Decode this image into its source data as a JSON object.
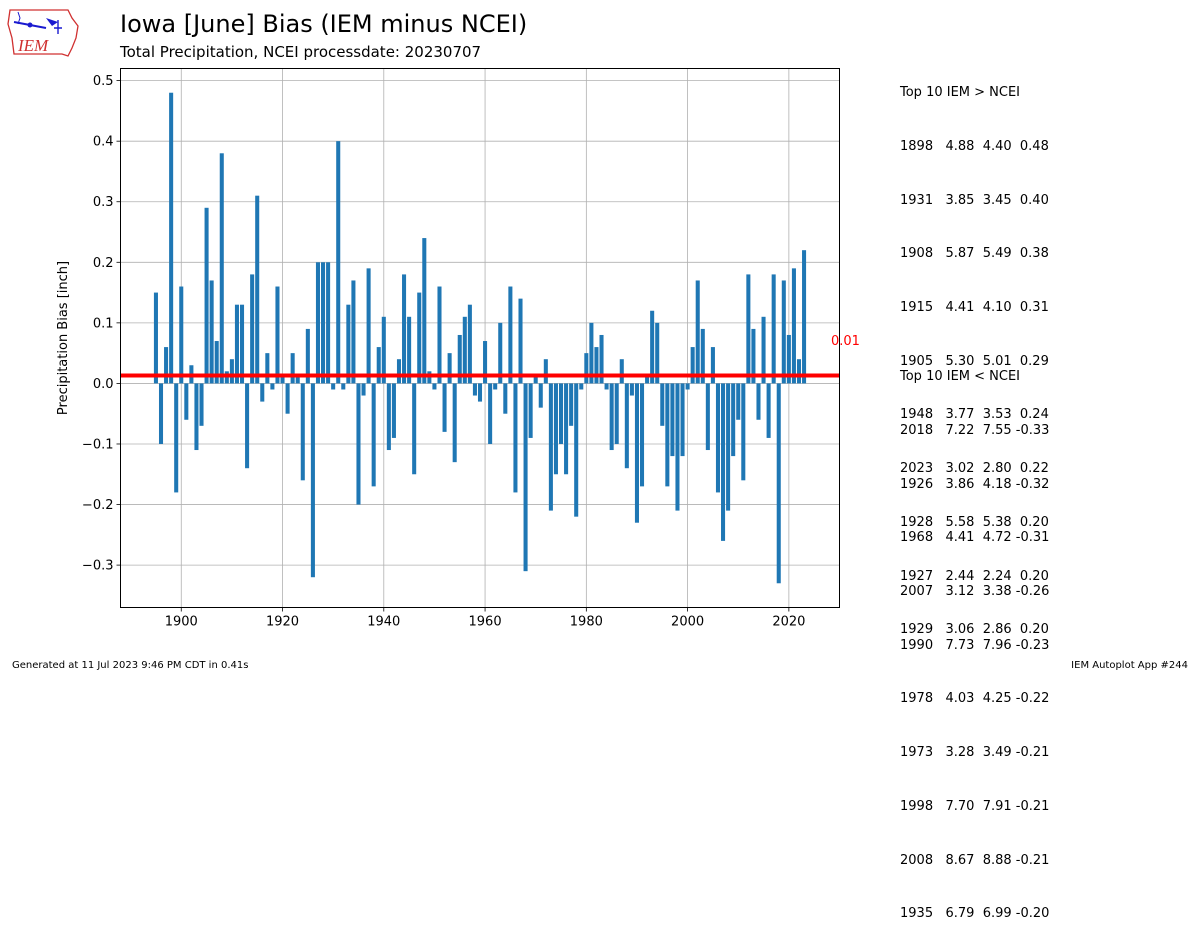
{
  "logo_text": "IEM",
  "title": "Iowa [June] Bias (IEM minus NCEI)",
  "subtitle": "Total Precipitation, NCEI processdate: 20230707",
  "footer": {
    "left": "Generated at 11 Jul 2023 9:46 PM CDT in 0.41s",
    "right": "IEM Autoplot App #244"
  },
  "top_positive": {
    "title": "Top 10 IEM > NCEI",
    "rows": [
      "1898   4.88  4.40  0.48",
      "1931   3.85  3.45  0.40",
      "1908   5.87  5.49  0.38",
      "1915   4.41  4.10  0.31",
      "1905   5.30  5.01  0.29",
      "1948   3.77  3.53  0.24",
      "2023   3.02  2.80  0.22",
      "1928   5.58  5.38  0.20",
      "1927   2.44  2.24  0.20",
      "1929   3.06  2.86  0.20"
    ]
  },
  "top_negative": {
    "title": "Top 10 IEM < NCEI",
    "rows": [
      "2018   7.22  7.55 -0.33",
      "1926   3.86  4.18 -0.32",
      "1968   4.41  4.72 -0.31",
      "2007   3.12  3.38 -0.26",
      "1990   7.73  7.96 -0.23",
      "1978   4.03  4.25 -0.22",
      "1973   3.28  3.49 -0.21",
      "1998   7.70  7.91 -0.21",
      "2008   8.67  8.88 -0.21",
      "1935   6.79  6.99 -0.20"
    ]
  },
  "chart_data": {
    "type": "bar",
    "title": "Iowa [June] Bias (IEM minus NCEI)",
    "subtitle": "Total Precipitation, NCEI processdate: 20230707",
    "xlabel": "",
    "ylabel": "Precipitation Bias [inch]",
    "xlim": [
      1888,
      2030
    ],
    "ylim": [
      -0.37,
      0.52
    ],
    "xticks": [
      1900,
      1920,
      1940,
      1960,
      1980,
      2000,
      2020
    ],
    "yticks": [
      -0.3,
      -0.2,
      -0.1,
      0.0,
      0.1,
      0.2,
      0.3,
      0.4,
      0.5
    ],
    "ytick_labels": [
      "−0.3",
      "−0.2",
      "−0.1",
      "0.0",
      "0.1",
      "0.2",
      "0.3",
      "0.4",
      "0.5"
    ],
    "grid": true,
    "bar_color": "#1f77b4",
    "mean_line": {
      "value": 0.013,
      "label": "0.01",
      "color": "#ff0000"
    },
    "x": [
      1895,
      1896,
      1897,
      1898,
      1899,
      1900,
      1901,
      1902,
      1903,
      1904,
      1905,
      1906,
      1907,
      1908,
      1909,
      1910,
      1911,
      1912,
      1913,
      1914,
      1915,
      1916,
      1917,
      1918,
      1919,
      1920,
      1921,
      1922,
      1923,
      1924,
      1925,
      1926,
      1927,
      1928,
      1929,
      1930,
      1931,
      1932,
      1933,
      1934,
      1935,
      1936,
      1937,
      1938,
      1939,
      1940,
      1941,
      1942,
      1943,
      1944,
      1945,
      1946,
      1947,
      1948,
      1949,
      1950,
      1951,
      1952,
      1953,
      1954,
      1955,
      1956,
      1957,
      1958,
      1959,
      1960,
      1961,
      1962,
      1963,
      1964,
      1965,
      1966,
      1967,
      1968,
      1969,
      1970,
      1971,
      1972,
      1973,
      1974,
      1975,
      1976,
      1977,
      1978,
      1979,
      1980,
      1981,
      1982,
      1983,
      1984,
      1985,
      1986,
      1987,
      1988,
      1989,
      1990,
      1991,
      1992,
      1993,
      1994,
      1995,
      1996,
      1997,
      1998,
      1999,
      2000,
      2001,
      2002,
      2003,
      2004,
      2005,
      2006,
      2007,
      2008,
      2009,
      2010,
      2011,
      2012,
      2013,
      2014,
      2015,
      2016,
      2017,
      2018,
      2019,
      2020,
      2021,
      2022,
      2023
    ],
    "values": [
      0.15,
      -0.1,
      0.06,
      0.48,
      -0.18,
      0.16,
      -0.06,
      0.03,
      -0.11,
      -0.07,
      0.29,
      0.17,
      0.07,
      0.38,
      0.02,
      0.04,
      0.13,
      0.13,
      -0.14,
      0.18,
      0.31,
      -0.03,
      0.05,
      -0.01,
      0.16,
      0.01,
      -0.05,
      0.05,
      0.01,
      -0.16,
      0.09,
      -0.32,
      0.2,
      0.2,
      0.2,
      -0.01,
      0.4,
      -0.01,
      0.13,
      0.17,
      -0.2,
      -0.02,
      0.19,
      -0.17,
      0.06,
      0.11,
      -0.11,
      -0.09,
      0.04,
      0.18,
      0.11,
      -0.15,
      0.15,
      0.24,
      0.02,
      -0.01,
      0.16,
      -0.08,
      0.05,
      -0.13,
      0.08,
      0.11,
      0.13,
      -0.02,
      -0.03,
      0.07,
      -0.1,
      -0.01,
      0.1,
      -0.05,
      0.16,
      -0.18,
      0.14,
      -0.31,
      -0.09,
      0.01,
      -0.04,
      0.04,
      -0.21,
      -0.15,
      -0.1,
      -0.15,
      -0.07,
      -0.22,
      -0.01,
      0.05,
      0.1,
      0.06,
      0.08,
      -0.01,
      -0.11,
      -0.1,
      0.04,
      -0.14,
      -0.02,
      -0.23,
      -0.17,
      0.01,
      0.12,
      0.1,
      -0.07,
      -0.17,
      -0.12,
      -0.21,
      -0.12,
      -0.01,
      0.06,
      0.17,
      0.09,
      -0.11,
      0.06,
      -0.18,
      -0.26,
      -0.21,
      -0.12,
      -0.06,
      -0.16,
      0.18,
      0.09,
      -0.06,
      0.11,
      -0.09,
      0.18,
      -0.33,
      0.17,
      0.08,
      0.19,
      0.04,
      0.22
    ]
  }
}
